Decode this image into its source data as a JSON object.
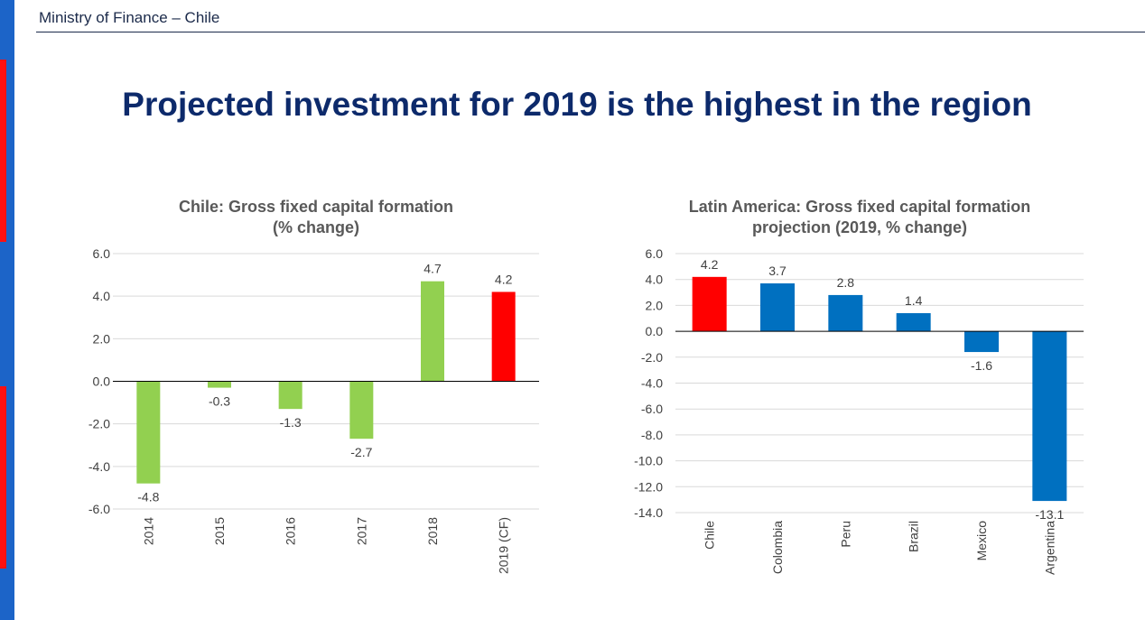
{
  "header": {
    "org": "Ministry of Finance – Chile"
  },
  "page_title": "Projected investment for 2019 is the highest in the region",
  "colors": {
    "green": "#92d050",
    "red": "#ff0000",
    "blue": "#0070c0",
    "title_navy": "#0d2a6b"
  },
  "chart_data": [
    {
      "type": "bar",
      "title_line1": "Chile: Gross fixed capital formation",
      "title_line2": "(% change)",
      "categories": [
        "2014",
        "2015",
        "2016",
        "2017",
        "2018",
        "2019 (CF)"
      ],
      "values": [
        -4.8,
        -0.3,
        -1.3,
        -2.7,
        4.7,
        4.2
      ],
      "data_labels": [
        "-4.8",
        "-0.3",
        "-1.3",
        "-2.7",
        "4.7",
        "4.2"
      ],
      "bar_colors": [
        "#92d050",
        "#92d050",
        "#92d050",
        "#92d050",
        "#92d050",
        "#ff0000"
      ],
      "ylim": [
        -6,
        6
      ],
      "yticks": [
        6,
        4,
        2,
        0,
        -2,
        -4,
        -6
      ],
      "ytick_labels": [
        "6.0",
        "4.0",
        "2.0",
        "0.0",
        "-2.0",
        "-4.0",
        "-6.0"
      ],
      "grid": true
    },
    {
      "type": "bar",
      "title_line1": "Latin America: Gross fixed capital formation",
      "title_line2": "projection (2019, % change)",
      "categories": [
        "Chile",
        "Colombia",
        "Peru",
        "Brazil",
        "Mexico",
        "Argentina"
      ],
      "values": [
        4.2,
        3.7,
        2.8,
        1.4,
        -1.6,
        -13.1
      ],
      "data_labels": [
        "4.2",
        "3.7",
        "2.8",
        "1.4",
        "-1.6",
        "-13.1"
      ],
      "bar_colors": [
        "#ff0000",
        "#0070c0",
        "#0070c0",
        "#0070c0",
        "#0070c0",
        "#0070c0"
      ],
      "ylim": [
        -14,
        6
      ],
      "yticks": [
        6,
        4,
        2,
        0,
        -2,
        -4,
        -6,
        -8,
        -10,
        -12,
        -14
      ],
      "ytick_labels": [
        "6.0",
        "4.0",
        "2.0",
        "0.0",
        "-2.0",
        "-4.0",
        "-6.0",
        "-8.0",
        "-10.0",
        "-12.0",
        "-14.0"
      ],
      "grid": true
    }
  ]
}
